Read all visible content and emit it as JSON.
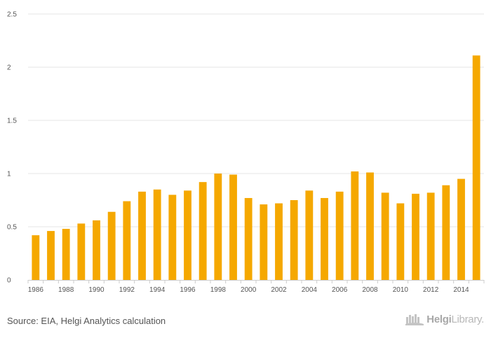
{
  "chart_data": {
    "type": "bar",
    "title": "",
    "xlabel": "",
    "ylabel": "",
    "ylim": [
      0,
      2.5
    ],
    "yticks": [
      "0",
      "0.5",
      "1",
      "1.5",
      "2",
      "2.5"
    ],
    "ytick_values": [
      0,
      0.5,
      1,
      1.5,
      2,
      2.5
    ],
    "categories": [
      "1986",
      "1987",
      "1988",
      "1989",
      "1990",
      "1991",
      "1992",
      "1993",
      "1994",
      "1995",
      "1996",
      "1997",
      "1998",
      "1999",
      "2000",
      "2001",
      "2002",
      "2003",
      "2004",
      "2005",
      "2006",
      "2007",
      "2008",
      "2009",
      "2010",
      "2011",
      "2012",
      "2013",
      "2014",
      "2015"
    ],
    "xtick_labels": [
      "1986",
      "1988",
      "1990",
      "1992",
      "1994",
      "1996",
      "1998",
      "2000",
      "2002",
      "2004",
      "2006",
      "2008",
      "2010",
      "2012",
      "2014"
    ],
    "values": [
      0.42,
      0.46,
      0.48,
      0.53,
      0.56,
      0.64,
      0.74,
      0.83,
      0.85,
      0.8,
      0.84,
      0.92,
      1.0,
      0.99,
      0.77,
      0.71,
      0.72,
      0.75,
      0.84,
      0.77,
      0.83,
      1.02,
      1.01,
      0.82,
      0.72,
      0.81,
      0.82,
      0.89,
      0.95,
      2.11
    ],
    "bar_color": "#f5a800",
    "grid_color": "#e6e6e6"
  },
  "footer": {
    "source": "Source: EIA, Helgi Analytics calculation",
    "logo_brand": "Helgi",
    "logo_suffix": "Library."
  }
}
